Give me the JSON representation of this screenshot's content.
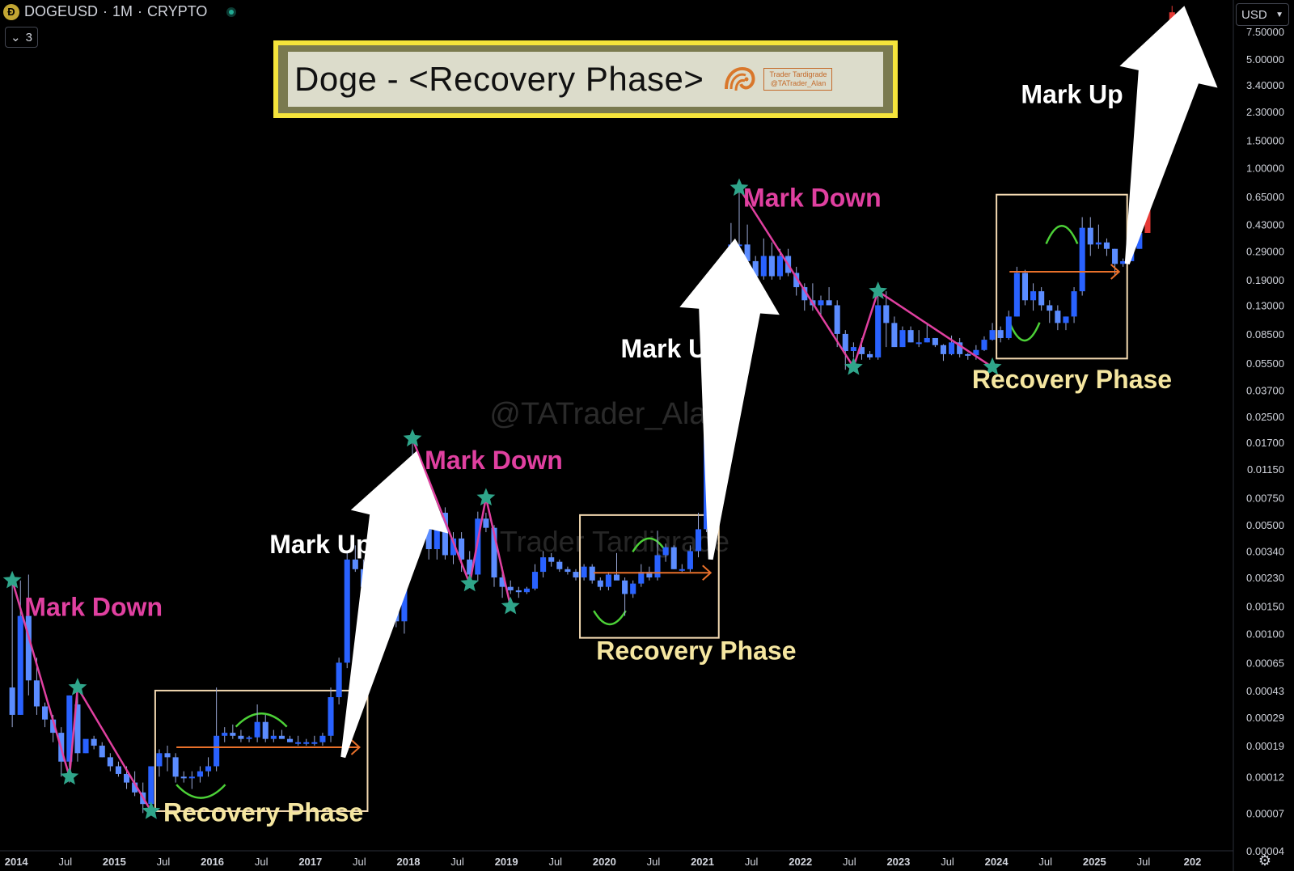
{
  "header": {
    "symbol": "DOGEUSD",
    "separator": "·",
    "interval": "1M",
    "market": "CRYPTO",
    "coin_icon_glyph": "Ð",
    "indicator_count": "3",
    "currency": "USD",
    "live_status_color": "#22ab94"
  },
  "banner": {
    "title": "Doge - <Recovery Phase>",
    "tag_line1": "Trader Tardigrade",
    "tag_line2": "@TATrader_Alan",
    "frame_color": "#f5e43b"
  },
  "watermarks": {
    "main": "@TATrader_Alan",
    "secondary": "Trader Tardigrade"
  },
  "colors": {
    "candle_up": "#2962ff",
    "candle_up_light": "#5b8cff",
    "recent_candles": "#e53935",
    "mark_down_text": "#e040a0",
    "mark_down_line": "#e040a0",
    "recovery_text": "#f5e6a0",
    "recovery_box": "#f3d9b1",
    "arrow_orange": "#e8702a",
    "arc_green": "#4cd137",
    "star": "#2fa58a",
    "mark_up_text": "#ffffff"
  },
  "chart_data": {
    "type": "candlestick",
    "title": "DOGEUSD · 1M · CRYPTO",
    "y_scale": "log",
    "ylim": [
      4e-05,
      12
    ],
    "y_ticks": [
      "7.50000",
      "5.00000",
      "3.40000",
      "2.30000",
      "1.50000",
      "1.00000",
      "0.65000",
      "0.43000",
      "0.29000",
      "0.19000",
      "0.13000",
      "0.08500",
      "0.05500",
      "0.03700",
      "0.02500",
      "0.01700",
      "0.01150",
      "0.00750",
      "0.00500",
      "0.00340",
      "0.00230",
      "0.00150",
      "0.00100",
      "0.00065",
      "0.00043",
      "0.00029",
      "0.00019",
      "0.00012",
      "0.00007",
      "0.00004"
    ],
    "x_ticks": [
      "2014",
      "Jul",
      "2015",
      "Jul",
      "2016",
      "Jul",
      "2017",
      "Jul",
      "2018",
      "Jul",
      "2019",
      "Jul",
      "2020",
      "Jul",
      "2021",
      "Jul",
      "2022",
      "Jul",
      "2023",
      "Jul",
      "2024",
      "Jul",
      "2025",
      "Jul",
      "202"
    ],
    "xlim": [
      "2013-11",
      "2026-06"
    ],
    "candles": [
      [
        "2013-12",
        0.00045,
        0.0022,
        0.00025,
        0.0003
      ],
      [
        "2014-01",
        0.0003,
        0.0022,
        0.0003,
        0.0013
      ],
      [
        "2014-02",
        0.0013,
        0.0024,
        0.0004,
        0.0005
      ],
      [
        "2014-03",
        0.0005,
        0.0007,
        0.0003,
        0.00034
      ],
      [
        "2014-04",
        0.00034,
        0.00036,
        0.00025,
        0.00028
      ],
      [
        "2014-05",
        0.00028,
        0.0003,
        0.0002,
        0.00023
      ],
      [
        "2014-06",
        0.00023,
        0.00025,
        0.00012,
        0.00015
      ],
      [
        "2014-07",
        0.00015,
        0.0004,
        0.00011,
        0.0004
      ],
      [
        "2014-08",
        0.00035,
        0.0005,
        0.00015,
        0.00017
      ],
      [
        "2014-09",
        0.00017,
        0.0002,
        0.00017,
        0.00021
      ],
      [
        "2014-10",
        0.00021,
        0.00022,
        0.00018,
        0.00019
      ],
      [
        "2014-11",
        0.00019,
        0.0002,
        0.00016,
        0.00016
      ],
      [
        "2014-12",
        0.00016,
        0.00017,
        0.00013,
        0.00014
      ],
      [
        "2015-01",
        0.00014,
        0.00015,
        0.00012,
        0.000125
      ],
      [
        "2015-02",
        0.000125,
        0.00014,
        0.0001,
        0.00011
      ],
      [
        "2015-03",
        0.00011,
        0.00013,
        9e-05,
        9.5e-05
      ],
      [
        "2015-04",
        9.5e-05,
        0.00011,
        7e-05,
        8e-05
      ],
      [
        "2015-05",
        8e-05,
        0.00014,
        7.5e-05,
        0.00014
      ],
      [
        "2015-06",
        0.00014,
        0.00018,
        0.00012,
        0.00017
      ],
      [
        "2015-07",
        0.00017,
        0.00019,
        0.00013,
        0.00016
      ],
      [
        "2015-08",
        0.00016,
        0.00017,
        0.00011,
        0.00012
      ],
      [
        "2015-09",
        0.00012,
        0.00013,
        0.00011,
        0.000118
      ],
      [
        "2015-10",
        0.000118,
        0.00013,
        0.0001,
        0.00012
      ],
      [
        "2015-11",
        0.00012,
        0.00014,
        0.00011,
        0.00013
      ],
      [
        "2015-12",
        0.00013,
        0.00016,
        0.00012,
        0.00014
      ],
      [
        "2016-01",
        0.00014,
        0.00045,
        0.00013,
        0.00022
      ],
      [
        "2016-02",
        0.00022,
        0.00025,
        0.0002,
        0.00023
      ],
      [
        "2016-03",
        0.00023,
        0.00026,
        0.00021,
        0.00022
      ],
      [
        "2016-04",
        0.00022,
        0.00024,
        0.0002,
        0.00021
      ],
      [
        "2016-05",
        0.00021,
        0.00022,
        0.0002,
        0.000215
      ],
      [
        "2016-06",
        0.000215,
        0.00035,
        0.0002,
        0.00027
      ],
      [
        "2016-07",
        0.00027,
        0.0003,
        0.0002,
        0.00021
      ],
      [
        "2016-08",
        0.00021,
        0.00024,
        0.0002,
        0.00022
      ],
      [
        "2016-09",
        0.00022,
        0.00024,
        0.00021,
        0.00021
      ],
      [
        "2016-10",
        0.00021,
        0.00022,
        0.0002,
        0.0002
      ],
      [
        "2016-11",
        0.0002,
        0.00022,
        0.00019,
        0.0002
      ],
      [
        "2016-12",
        0.0002,
        0.00021,
        0.00019,
        0.0002
      ],
      [
        "2017-01",
        0.0002,
        0.00022,
        0.00019,
        0.0002
      ],
      [
        "2017-02",
        0.0002,
        0.00023,
        0.00019,
        0.00022
      ],
      [
        "2017-03",
        0.00022,
        0.00045,
        0.0002,
        0.00039
      ],
      [
        "2017-04",
        0.00039,
        0.0007,
        0.00035,
        0.00065
      ],
      [
        "2017-05",
        0.00065,
        0.0033,
        0.0006,
        0.003
      ],
      [
        "2017-06",
        0.003,
        0.0037,
        0.0025,
        0.0026
      ],
      [
        "2017-07",
        0.0026,
        0.003,
        0.0014,
        0.002
      ],
      [
        "2017-08",
        0.002,
        0.0028,
        0.0018,
        0.0023
      ],
      [
        "2017-09",
        0.0023,
        0.0026,
        0.0011,
        0.0011
      ],
      [
        "2017-10",
        0.0011,
        0.0024,
        0.0009,
        0.0021
      ],
      [
        "2017-11",
        0.0021,
        0.0025,
        0.0011,
        0.0012
      ],
      [
        "2017-12",
        0.0012,
        0.0085,
        0.001,
        0.008
      ],
      [
        "2018-01",
        0.008,
        0.018,
        0.006,
        0.0085
      ],
      [
        "2018-02",
        0.0085,
        0.009,
        0.0045,
        0.0055
      ],
      [
        "2018-03",
        0.0055,
        0.0066,
        0.003,
        0.0035
      ],
      [
        "2018-04",
        0.0035,
        0.0065,
        0.003,
        0.006
      ],
      [
        "2018-05",
        0.006,
        0.0065,
        0.003,
        0.0032
      ],
      [
        "2018-06",
        0.0032,
        0.0045,
        0.0028,
        0.0041
      ],
      [
        "2018-07",
        0.0041,
        0.0045,
        0.0025,
        0.003
      ],
      [
        "2018-08",
        0.003,
        0.0034,
        0.002,
        0.0024
      ],
      [
        "2018-09",
        0.0024,
        0.0061,
        0.0022,
        0.0055
      ],
      [
        "2018-10",
        0.0055,
        0.006,
        0.0045,
        0.0048
      ],
      [
        "2018-11",
        0.0048,
        0.005,
        0.002,
        0.0023
      ],
      [
        "2018-12",
        0.0023,
        0.0027,
        0.0017,
        0.002
      ],
      [
        "2019-01",
        0.002,
        0.0022,
        0.0018,
        0.0019
      ],
      [
        "2019-02",
        0.0019,
        0.002,
        0.0017,
        0.00185
      ],
      [
        "2019-03",
        0.00185,
        0.002,
        0.0018,
        0.00195
      ],
      [
        "2019-04",
        0.00195,
        0.0028,
        0.0019,
        0.0025
      ],
      [
        "2019-05",
        0.0025,
        0.0034,
        0.0023,
        0.0031
      ],
      [
        "2019-06",
        0.0031,
        0.0033,
        0.0027,
        0.0029
      ],
      [
        "2019-07",
        0.0029,
        0.003,
        0.0025,
        0.0026
      ],
      [
        "2019-08",
        0.0026,
        0.0027,
        0.0024,
        0.0025
      ],
      [
        "2019-09",
        0.0025,
        0.0026,
        0.0022,
        0.0023
      ],
      [
        "2019-10",
        0.0023,
        0.0028,
        0.0022,
        0.0027
      ],
      [
        "2019-11",
        0.0027,
        0.0028,
        0.0021,
        0.0022
      ],
      [
        "2019-12",
        0.0022,
        0.0023,
        0.0019,
        0.002
      ],
      [
        "2020-01",
        0.002,
        0.0025,
        0.0019,
        0.0024
      ],
      [
        "2020-02",
        0.0024,
        0.0033,
        0.0023,
        0.0022
      ],
      [
        "2020-03",
        0.0022,
        0.0023,
        0.0013,
        0.0018
      ],
      [
        "2020-04",
        0.0018,
        0.0022,
        0.0017,
        0.0021
      ],
      [
        "2020-05",
        0.0021,
        0.0028,
        0.002,
        0.0025
      ],
      [
        "2020-06",
        0.0025,
        0.0027,
        0.0022,
        0.0023
      ],
      [
        "2020-07",
        0.0023,
        0.0046,
        0.0022,
        0.0032
      ],
      [
        "2020-08",
        0.0032,
        0.0038,
        0.0029,
        0.0036
      ],
      [
        "2020-09",
        0.0036,
        0.0037,
        0.0026,
        0.0026
      ],
      [
        "2020-10",
        0.0026,
        0.0028,
        0.0025,
        0.0026
      ],
      [
        "2020-11",
        0.0026,
        0.0037,
        0.0025,
        0.0034
      ],
      [
        "2020-12",
        0.0034,
        0.006,
        0.0031,
        0.0047
      ],
      [
        "2021-01",
        0.0047,
        0.087,
        0.0045,
        0.035
      ],
      [
        "2021-02",
        0.035,
        0.085,
        0.03,
        0.05
      ],
      [
        "2021-03",
        0.05,
        0.065,
        0.045,
        0.055
      ],
      [
        "2021-04",
        0.055,
        0.44,
        0.05,
        0.32
      ],
      [
        "2021-05",
        0.32,
        0.74,
        0.28,
        0.32
      ],
      [
        "2021-06",
        0.32,
        0.43,
        0.2,
        0.25
      ],
      [
        "2021-07",
        0.25,
        0.27,
        0.16,
        0.2
      ],
      [
        "2021-08",
        0.2,
        0.35,
        0.19,
        0.27
      ],
      [
        "2021-09",
        0.27,
        0.33,
        0.19,
        0.2
      ],
      [
        "2021-10",
        0.2,
        0.3,
        0.19,
        0.27
      ],
      [
        "2021-11",
        0.27,
        0.3,
        0.2,
        0.21
      ],
      [
        "2021-12",
        0.21,
        0.23,
        0.15,
        0.17
      ],
      [
        "2022-01",
        0.17,
        0.18,
        0.12,
        0.14
      ],
      [
        "2022-02",
        0.14,
        0.18,
        0.12,
        0.13
      ],
      [
        "2022-03",
        0.13,
        0.15,
        0.11,
        0.14
      ],
      [
        "2022-04",
        0.14,
        0.17,
        0.13,
        0.13
      ],
      [
        "2022-05",
        0.13,
        0.14,
        0.07,
        0.085
      ],
      [
        "2022-06",
        0.085,
        0.09,
        0.05,
        0.066
      ],
      [
        "2022-07",
        0.066,
        0.075,
        0.06,
        0.07
      ],
      [
        "2022-08",
        0.07,
        0.08,
        0.058,
        0.063
      ],
      [
        "2022-09",
        0.063,
        0.066,
        0.058,
        0.06
      ],
      [
        "2022-10",
        0.06,
        0.16,
        0.058,
        0.13
      ],
      [
        "2022-11",
        0.13,
        0.16,
        0.07,
        0.1
      ],
      [
        "2022-12",
        0.1,
        0.11,
        0.07,
        0.07
      ],
      [
        "2023-01",
        0.07,
        0.095,
        0.07,
        0.09
      ],
      [
        "2023-02",
        0.09,
        0.095,
        0.075,
        0.075
      ],
      [
        "2023-03",
        0.075,
        0.09,
        0.07,
        0.075
      ],
      [
        "2023-04",
        0.075,
        0.1,
        0.075,
        0.08
      ],
      [
        "2023-05",
        0.08,
        0.08,
        0.07,
        0.072
      ],
      [
        "2023-06",
        0.072,
        0.073,
        0.057,
        0.063
      ],
      [
        "2023-07",
        0.063,
        0.083,
        0.062,
        0.075
      ],
      [
        "2023-08",
        0.075,
        0.08,
        0.06,
        0.063
      ],
      [
        "2023-09",
        0.063,
        0.064,
        0.058,
        0.062
      ],
      [
        "2023-10",
        0.062,
        0.072,
        0.058,
        0.067
      ],
      [
        "2023-11",
        0.067,
        0.082,
        0.066,
        0.078
      ],
      [
        "2023-12",
        0.078,
        0.1,
        0.077,
        0.09
      ],
      [
        "2024-01",
        0.09,
        0.095,
        0.075,
        0.08
      ],
      [
        "2024-02",
        0.08,
        0.12,
        0.078,
        0.11
      ],
      [
        "2024-03",
        0.11,
        0.23,
        0.11,
        0.21
      ],
      [
        "2024-04",
        0.21,
        0.22,
        0.13,
        0.14
      ],
      [
        "2024-05",
        0.14,
        0.18,
        0.12,
        0.16
      ],
      [
        "2024-06",
        0.16,
        0.17,
        0.12,
        0.13
      ],
      [
        "2024-07",
        0.13,
        0.14,
        0.1,
        0.12
      ],
      [
        "2024-08",
        0.12,
        0.13,
        0.09,
        0.1
      ],
      [
        "2024-09",
        0.1,
        0.11,
        0.09,
        0.11
      ],
      [
        "2024-10",
        0.11,
        0.17,
        0.1,
        0.16
      ],
      [
        "2024-11",
        0.16,
        0.48,
        0.15,
        0.41
      ],
      [
        "2024-12",
        0.41,
        0.48,
        0.27,
        0.32
      ],
      [
        "2025-01",
        0.32,
        0.43,
        0.3,
        0.33
      ],
      [
        "2025-02",
        0.33,
        0.35,
        0.27,
        0.3
      ],
      [
        "2025-03",
        0.3,
        0.3,
        0.2,
        0.24
      ],
      [
        "2025-04",
        0.24,
        0.26,
        0.23,
        0.25
      ],
      [
        "2025-05",
        0.25,
        0.3,
        0.26,
        0.3
      ],
      [
        "2025-06",
        0.3,
        0.4,
        0.3,
        0.38
      ],
      [
        "2025-07",
        0.38,
        1.9,
        0.38,
        1.8
      ],
      [
        "2025-08",
        1.8,
        2.3,
        1.8,
        2.2
      ],
      [
        "2025-09",
        2.2,
        2.6,
        2.1,
        2.5
      ],
      [
        "2025-10",
        2.5,
        11,
        2.5,
        10
      ]
    ],
    "annotations": {
      "phase_labels": [
        {
          "text": "Mark Down",
          "kind": "down",
          "date": "2014-02",
          "price": 0.0013
        },
        {
          "text": "Mark Down",
          "kind": "down",
          "date": "2018-03",
          "price": 0.0115
        },
        {
          "text": "Mark Down",
          "kind": "down",
          "date": "2021-06",
          "price": 0.56
        },
        {
          "text": "Recovery Phase",
          "kind": "recovery",
          "date": "2015-07",
          "price": 6.2e-05
        },
        {
          "text": "Recovery Phase",
          "kind": "recovery",
          "date": "2019-12",
          "price": 0.00068
        },
        {
          "text": "Recovery Phase",
          "kind": "recovery",
          "date": "2023-10",
          "price": 0.038
        },
        {
          "text": "Mark Up",
          "kind": "up",
          "date": "2016-08",
          "price": 0.0033
        },
        {
          "text": "Mark Up",
          "kind": "up",
          "date": "2020-03",
          "price": 0.06
        },
        {
          "text": "Mark Up",
          "kind": "up",
          "date": "2024-04",
          "price": 2.6
        }
      ],
      "recovery_boxes": [
        {
          "from": "2015-06",
          "to": "2017-08",
          "high": 0.00043,
          "low": 7.2e-05
        },
        {
          "from": "2019-10",
          "to": "2021-03",
          "high": 0.0058,
          "low": 0.00094
        },
        {
          "from": "2024-01",
          "to": "2025-05",
          "high": 0.67,
          "low": 0.059
        }
      ],
      "markdown_paths": [
        [
          [
            "2013-12",
            0.0022
          ],
          [
            "2014-07",
            0.00012
          ],
          [
            "2014-08",
            0.00045
          ],
          [
            "2015-05",
            7.2e-05
          ]
        ],
        [
          [
            "2018-01",
            0.018
          ],
          [
            "2018-08",
            0.0021
          ],
          [
            "2018-10",
            0.0075
          ],
          [
            "2019-01",
            0.0015
          ]
        ],
        [
          [
            "2021-05",
            0.74
          ],
          [
            "2022-07",
            0.052
          ],
          [
            "2022-10",
            0.16
          ],
          [
            "2023-12",
            0.052
          ]
        ]
      ],
      "stars": [
        [
          "2013-12",
          0.0022
        ],
        [
          "2014-07",
          0.00012
        ],
        [
          "2014-08",
          0.00045
        ],
        [
          "2015-05",
          7.2e-05
        ],
        [
          "2018-01",
          0.018
        ],
        [
          "2018-08",
          0.0021
        ],
        [
          "2018-10",
          0.0075
        ],
        [
          "2019-01",
          0.0015
        ],
        [
          "2021-05",
          0.74
        ],
        [
          "2022-07",
          0.052
        ],
        [
          "2022-10",
          0.16
        ],
        [
          "2023-12",
          0.052
        ]
      ],
      "markup_arrows": [
        {
          "from": [
            "2017-05",
            0.00016
          ],
          "to": [
            "2018-02",
            0.015
          ]
        },
        {
          "from": [
            "2021-02",
            0.003
          ],
          "to": [
            "2021-05",
            0.35
          ]
        },
        {
          "from": [
            "2025-05",
            0.24
          ],
          "to": [
            "2025-12",
            11
          ]
        }
      ]
    }
  }
}
